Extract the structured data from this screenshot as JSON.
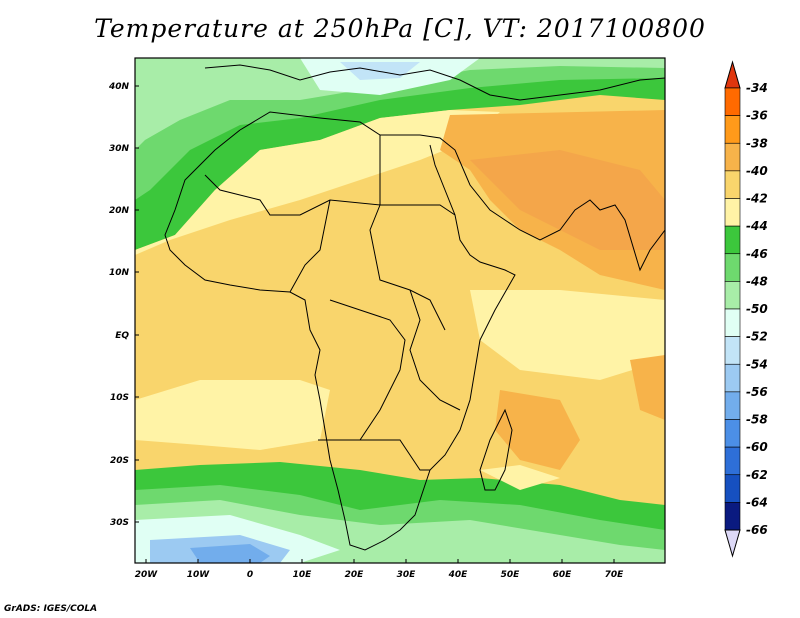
{
  "title": "Temperature at 250hPa [C], VT: 2017100800",
  "credit": "GrADS: IGES/COLA",
  "map": {
    "lat_ticks": [
      "40N",
      "30N",
      "20N",
      "10N",
      "EQ",
      "10S",
      "20S",
      "30S"
    ],
    "lon_ticks": [
      "20W",
      "10W",
      "0",
      "10E",
      "20E",
      "30E",
      "40E",
      "50E",
      "60E",
      "70E"
    ]
  },
  "colorbar": {
    "labels": [
      "-34",
      "-36",
      "-38",
      "-40",
      "-42",
      "-44",
      "-46",
      "-48",
      "-50",
      "-52",
      "-54",
      "-56",
      "-58",
      "-60",
      "-62",
      "-64",
      "-66"
    ],
    "colors": [
      "#e0360e",
      "#ff6a00",
      "#ff9a1a",
      "#f7b34a",
      "#f9d56c",
      "#fff3a6",
      "#3cc73c",
      "#6ed96e",
      "#a8eda8",
      "#e0fff4",
      "#c2e4f7",
      "#9ccaf2",
      "#72adec",
      "#4c8fe6",
      "#2e6fd8",
      "#1650c0",
      "#0a1a80"
    ],
    "arrow_top_color": "#e0360e",
    "arrow_bottom_color": "#ddd9f7"
  }
}
